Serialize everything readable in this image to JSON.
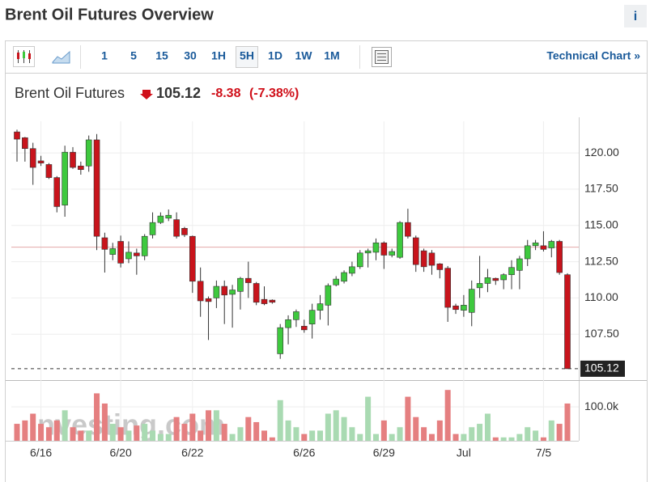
{
  "header": {
    "title": "Brent Oil Futures Overview",
    "info": "i"
  },
  "toolbar": {
    "buttons": [
      "1",
      "5",
      "15",
      "30",
      "1H",
      "5H",
      "1D",
      "1W",
      "1M"
    ],
    "selected": "5H",
    "link": "Technical Chart »"
  },
  "quote": {
    "name": "Brent Oil Futures",
    "last": "105.12",
    "change": "-8.38",
    "change_percent": "(-7.38%)"
  },
  "chart_data": {
    "type": "candlestick",
    "watermark": "Investing.com",
    "up_color": "#3ec93e",
    "down_color": "#c8141c",
    "categories": [
      null,
      null,
      null,
      "6/16",
      null,
      null,
      null,
      null,
      null,
      null,
      null,
      null,
      null,
      "6/20",
      null,
      null,
      null,
      null,
      null,
      null,
      null,
      null,
      "6/22",
      null,
      null,
      null,
      null,
      null,
      null,
      null,
      null,
      null,
      null,
      null,
      null,
      null,
      "6/26",
      null,
      null,
      null,
      null,
      null,
      null,
      null,
      null,
      null,
      "6/29",
      null,
      null,
      null,
      null,
      null,
      null,
      null,
      null,
      null,
      "Jul",
      null,
      null,
      null,
      null,
      null,
      null,
      null,
      null,
      null,
      "7/5",
      null,
      null,
      null
    ],
    "open": [
      121.45,
      121.05,
      120.3,
      119.45,
      119.2,
      118.3,
      116.4,
      120.05,
      119.1,
      119.1,
      120.9,
      114.15,
      113.0,
      113.9,
      112.7,
      113.1,
      112.9,
      114.35,
      115.2,
      115.5,
      115.4,
      114.8,
      114.25,
      111.15,
      109.95,
      110.0,
      110.8,
      110.25,
      110.45,
      111.35,
      111.0,
      109.9,
      109.85,
      106.15,
      107.95,
      108.5,
      108.05,
      108.2,
      109.15,
      109.5,
      110.9,
      111.15,
      111.7,
      112.15,
      113.1,
      113.15,
      113.8,
      112.95,
      112.8,
      115.2,
      114.15,
      113.25,
      113.1,
      112.35,
      112.05,
      109.45,
      109.15,
      109.0,
      110.7,
      111.0,
      111.35,
      111.25,
      111.6,
      111.9,
      112.7,
      113.6,
      113.6,
      113.45,
      113.9,
      111.6
    ],
    "high": [
      121.6,
      121.1,
      120.7,
      119.8,
      119.3,
      118.4,
      120.5,
      120.4,
      119.4,
      121.2,
      121.3,
      114.5,
      113.8,
      114.3,
      113.9,
      113.4,
      114.4,
      115.9,
      115.9,
      116.1,
      115.9,
      114.9,
      114.3,
      112.1,
      110.1,
      111.2,
      111.2,
      110.9,
      111.45,
      112.5,
      111.1,
      110.8,
      109.9,
      108.2,
      108.8,
      109.2,
      108.5,
      109.6,
      110.2,
      111.0,
      111.5,
      111.9,
      112.5,
      113.3,
      113.4,
      114.1,
      113.9,
      113.4,
      115.3,
      116.15,
      114.3,
      113.4,
      113.3,
      112.4,
      112.2,
      109.6,
      110.2,
      111.2,
      112.9,
      112.0,
      111.4,
      111.7,
      112.6,
      112.9,
      114.0,
      114.0,
      114.6,
      114.0,
      114.0,
      111.7
    ],
    "low": [
      119.4,
      119.4,
      117.8,
      119.1,
      118.2,
      115.9,
      115.6,
      118.9,
      118.5,
      118.7,
      113.3,
      111.75,
      112.6,
      112.1,
      112.4,
      111.6,
      112.6,
      114.1,
      115.1,
      115.3,
      114.1,
      114.2,
      110.35,
      108.7,
      107.1,
      109.3,
      108.2,
      107.95,
      109.2,
      110.0,
      109.5,
      109.5,
      109.6,
      105.8,
      106.8,
      108.0,
      107.6,
      107.2,
      108.5,
      108.1,
      110.8,
      111.0,
      111.5,
      112.0,
      112.1,
      112.6,
      112.0,
      112.8,
      112.7,
      114.1,
      111.8,
      111.8,
      111.6,
      111.35,
      108.35,
      108.9,
      108.7,
      108.05,
      110.0,
      110.4,
      110.9,
      110.6,
      110.6,
      110.6,
      112.2,
      113.3,
      113.2,
      112.8,
      111.6,
      105.1
    ],
    "close": [
      120.95,
      120.3,
      119.0,
      119.3,
      118.3,
      116.3,
      120.05,
      119.0,
      118.85,
      120.9,
      114.25,
      113.35,
      113.4,
      112.4,
      113.15,
      112.9,
      114.25,
      115.2,
      115.65,
      115.7,
      114.25,
      114.35,
      111.15,
      109.8,
      109.75,
      110.8,
      110.2,
      110.55,
      111.35,
      111.05,
      109.7,
      109.6,
      109.7,
      107.95,
      108.5,
      109.05,
      107.8,
      109.15,
      109.6,
      110.85,
      111.3,
      111.75,
      112.15,
      113.1,
      113.25,
      113.8,
      112.95,
      113.2,
      115.2,
      114.25,
      112.3,
      112.15,
      112.25,
      111.95,
      109.35,
      109.2,
      109.5,
      110.6,
      111.0,
      111.4,
      111.2,
      111.6,
      112.1,
      112.7,
      113.6,
      113.8,
      113.35,
      113.9,
      111.75,
      105.12
    ],
    "prev_close": 113.5,
    "ylim": [
      104.78,
      122.18
    ],
    "yticks": [
      {
        "value": 107.5,
        "label": "107.50"
      },
      {
        "value": 110,
        "label": "110.00"
      },
      {
        "value": 112.5,
        "label": "112.50"
      },
      {
        "value": 115,
        "label": "115.00"
      },
      {
        "value": 117.5,
        "label": "117.50"
      },
      {
        "value": 120,
        "label": "120.00"
      }
    ],
    "volume": {
      "up_color": "#a9dab2",
      "down_color": "#e57f80",
      "values": [
        50000,
        60000,
        80000,
        50000,
        40000,
        60000,
        90000,
        40000,
        30000,
        30000,
        140000,
        110000,
        50000,
        40000,
        30000,
        45000,
        50000,
        30000,
        20000,
        20000,
        70000,
        50000,
        80000,
        30000,
        90000,
        90000,
        50000,
        20000,
        40000,
        70000,
        55000,
        30000,
        10000,
        120000,
        60000,
        40000,
        20000,
        30000,
        30000,
        80000,
        90000,
        70000,
        40000,
        20000,
        130000,
        20000,
        60000,
        20000,
        40000,
        130000,
        70000,
        40000,
        20000,
        60000,
        150000,
        20000,
        20000,
        40000,
        50000,
        80000,
        10000,
        10000,
        10000,
        20000,
        40000,
        30000,
        10000,
        60000,
        50000,
        110000
      ],
      "ylim": [
        0,
        160000
      ],
      "yticks": [
        {
          "value": 100000,
          "label": "100.0k"
        }
      ]
    }
  }
}
